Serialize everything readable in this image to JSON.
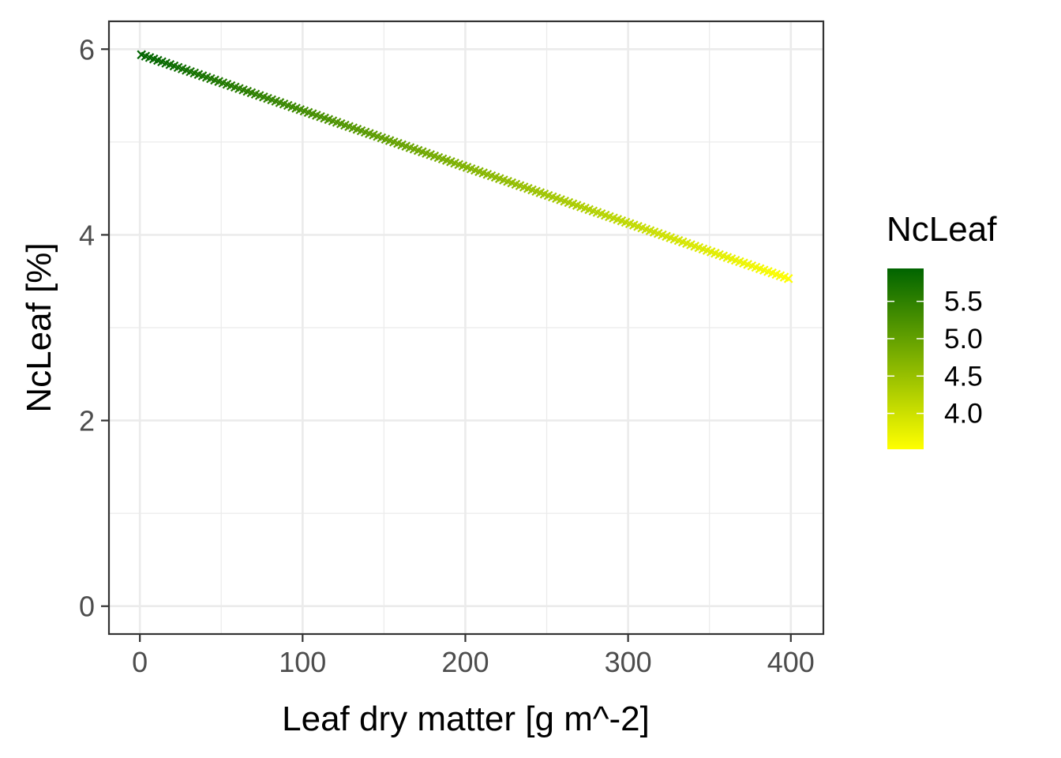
{
  "chart_data": {
    "type": "scatter",
    "xlabel": "Leaf dry matter [g m^-2]",
    "ylabel": "NcLeaf [%]",
    "xlim": [
      -19,
      420
    ],
    "ylim": [
      -0.3,
      6.3
    ],
    "x_ticks": [
      0,
      100,
      200,
      300,
      400
    ],
    "x_tick_labels": [
      "0",
      "100",
      "200",
      "300",
      "400"
    ],
    "y_ticks": [
      0,
      2,
      4,
      6
    ],
    "y_tick_labels": [
      "0",
      "2",
      "4",
      "6"
    ],
    "grid": true,
    "legend": {
      "title": "NcLeaf",
      "placement": "right",
      "type": "colorbar",
      "labels": [
        "5.5",
        "5.0",
        "4.5",
        "4.0"
      ],
      "values": [
        5.5,
        5.0,
        4.5,
        4.0
      ],
      "range": [
        3.52,
        5.94
      ],
      "color_low": "#ffff00",
      "color_high": "#006400"
    },
    "series": [
      {
        "marker": "x",
        "x_start": 1,
        "x_end": 400,
        "x_step": 2.5,
        "y_at_start": 5.94,
        "y_at_end": 3.52
      }
    ],
    "colors": {
      "panel_border": "#333333",
      "grid": "#ebebeb",
      "tick_text": "#4d4d4d"
    }
  }
}
